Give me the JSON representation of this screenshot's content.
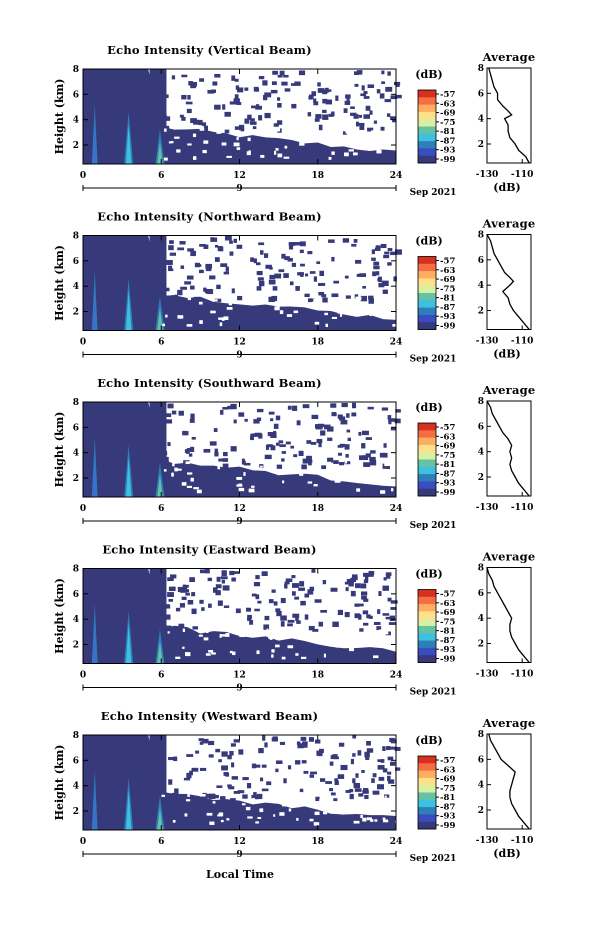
{
  "figure": {
    "xlabel": "Local Time",
    "date_label": "Sep 2021",
    "day_label": "9",
    "colorbar_unit": "(dB)",
    "colorbar_ticks": [
      "-57",
      "-63",
      "-69",
      "-75",
      "-81",
      "-87",
      "-93",
      "-99"
    ],
    "colorbar_colors": [
      "#d7301f",
      "#f46d43",
      "#fdae61",
      "#fee08b",
      "#d9f0a3",
      "#66c2a5",
      "#3ec1e0",
      "#2c7fb8",
      "#3b4cc0",
      "#36397a"
    ],
    "background_color": "#36397a"
  },
  "chart_data": [
    {
      "type": "heatmap",
      "title": "Echo Intensity (Vertical Beam)",
      "ylabel": "Height (km)",
      "xlim": [
        0,
        24
      ],
      "ylim": [
        0.5,
        8
      ],
      "xticks": [
        "0",
        "6",
        "12",
        "18",
        "24"
      ],
      "yticks": [
        "2",
        "4",
        "6",
        "8"
      ],
      "profile": {
        "title": "Average",
        "xlabel": "(dB)",
        "xticks": [
          "-130",
          "-110"
        ],
        "yticks": [
          "2",
          "4",
          "6",
          "8"
        ],
        "xlim": [
          -130,
          -105
        ],
        "height": [
          0.5,
          1.0,
          1.5,
          2.0,
          2.5,
          3.0,
          3.5,
          4.0,
          4.3,
          4.6,
          5.0,
          5.5,
          6.0,
          6.5,
          7.0,
          7.5,
          8.0
        ],
        "db": [
          -106,
          -108,
          -112,
          -114,
          -117,
          -118,
          -118,
          -120,
          -116,
          -118,
          -121,
          -124,
          -124,
          -126,
          -127,
          -128,
          -129
        ]
      }
    },
    {
      "type": "heatmap",
      "title": "Echo Intensity (Northward Beam)",
      "ylabel": "Height (km)",
      "xlim": [
        0,
        24
      ],
      "ylim": [
        0.5,
        8
      ],
      "xticks": [
        "0",
        "6",
        "12",
        "18",
        "24"
      ],
      "yticks": [
        "2",
        "4",
        "6",
        "8"
      ],
      "profile": {
        "title": "Average",
        "xlabel": "(dB)",
        "xticks": [
          "-130",
          "-110"
        ],
        "yticks": [
          "2",
          "4",
          "6",
          "8"
        ],
        "xlim": [
          -130,
          -105
        ],
        "height": [
          0.5,
          1.0,
          1.5,
          2.0,
          2.5,
          3.0,
          3.5,
          4.0,
          4.3,
          4.6,
          5.0,
          5.5,
          6.0,
          6.5,
          7.0,
          7.5,
          8.0
        ],
        "db": [
          -106,
          -109,
          -112,
          -115,
          -117,
          -118,
          -121,
          -117,
          -115,
          -117,
          -120,
          -122,
          -124,
          -126,
          -127,
          -128,
          -130
        ]
      }
    },
    {
      "type": "heatmap",
      "title": "Echo Intensity (Southward Beam)",
      "ylabel": "Height (km)",
      "xlim": [
        0,
        24
      ],
      "ylim": [
        0.5,
        8
      ],
      "xticks": [
        "0",
        "6",
        "12",
        "18",
        "24"
      ],
      "yticks": [
        "2",
        "4",
        "6",
        "8"
      ],
      "profile": {
        "title": "Average",
        "xlabel": "(dB)",
        "xticks": [
          "-130",
          "-110"
        ],
        "yticks": [
          "2",
          "4",
          "6",
          "8"
        ],
        "xlim": [
          -130,
          -105
        ],
        "height": [
          0.5,
          1.0,
          1.5,
          2.0,
          2.5,
          3.0,
          3.5,
          4.0,
          4.5,
          5.0,
          5.5,
          6.0,
          6.5,
          7.0,
          7.5,
          8.0
        ],
        "db": [
          -106,
          -109,
          -112,
          -114,
          -116,
          -117,
          -116,
          -117,
          -116,
          -118,
          -121,
          -123,
          -125,
          -127,
          -128,
          -130
        ]
      }
    },
    {
      "type": "heatmap",
      "title": "Echo Intensity (Eastward Beam)",
      "ylabel": "Height (km)",
      "xlim": [
        0,
        24
      ],
      "ylim": [
        0.5,
        8
      ],
      "xticks": [
        "0",
        "6",
        "12",
        "18",
        "24"
      ],
      "yticks": [
        "2",
        "4",
        "6",
        "8"
      ],
      "profile": {
        "title": "Average",
        "xlabel": "(dB)",
        "xticks": [
          "-130",
          "-110"
        ],
        "yticks": [
          "2",
          "4",
          "6",
          "8"
        ],
        "xlim": [
          -130,
          -105
        ],
        "height": [
          0.5,
          1.0,
          1.5,
          2.0,
          2.5,
          3.0,
          3.5,
          4.0,
          4.5,
          5.0,
          5.5,
          6.0,
          6.5,
          7.0,
          7.5,
          8.0
        ],
        "db": [
          -106,
          -109,
          -112,
          -114,
          -116,
          -117,
          -117,
          -116,
          -118,
          -120,
          -122,
          -124,
          -126,
          -127,
          -129,
          -130
        ]
      }
    },
    {
      "type": "heatmap",
      "title": "Echo Intensity (Westward Beam)",
      "ylabel": "Height (km)",
      "xlim": [
        0,
        24
      ],
      "ylim": [
        0.5,
        8
      ],
      "xticks": [
        "0",
        "6",
        "12",
        "18",
        "24"
      ],
      "yticks": [
        "2",
        "4",
        "6",
        "8"
      ],
      "profile": {
        "title": "Average",
        "xlabel": "(dB)",
        "xticks": [
          "-130",
          "-110"
        ],
        "yticks": [
          "2",
          "4",
          "6",
          "8"
        ],
        "xlim": [
          -130,
          -105
        ],
        "height": [
          0.5,
          1.0,
          1.5,
          2.0,
          2.5,
          3.0,
          3.5,
          4.0,
          4.5,
          5.0,
          5.5,
          6.0,
          6.5,
          7.0,
          7.5,
          8.0
        ],
        "db": [
          -106,
          -109,
          -112,
          -114,
          -116,
          -117,
          -117,
          -116,
          -115,
          -114,
          -118,
          -122,
          -124,
          -126,
          -128,
          -129
        ]
      }
    }
  ]
}
